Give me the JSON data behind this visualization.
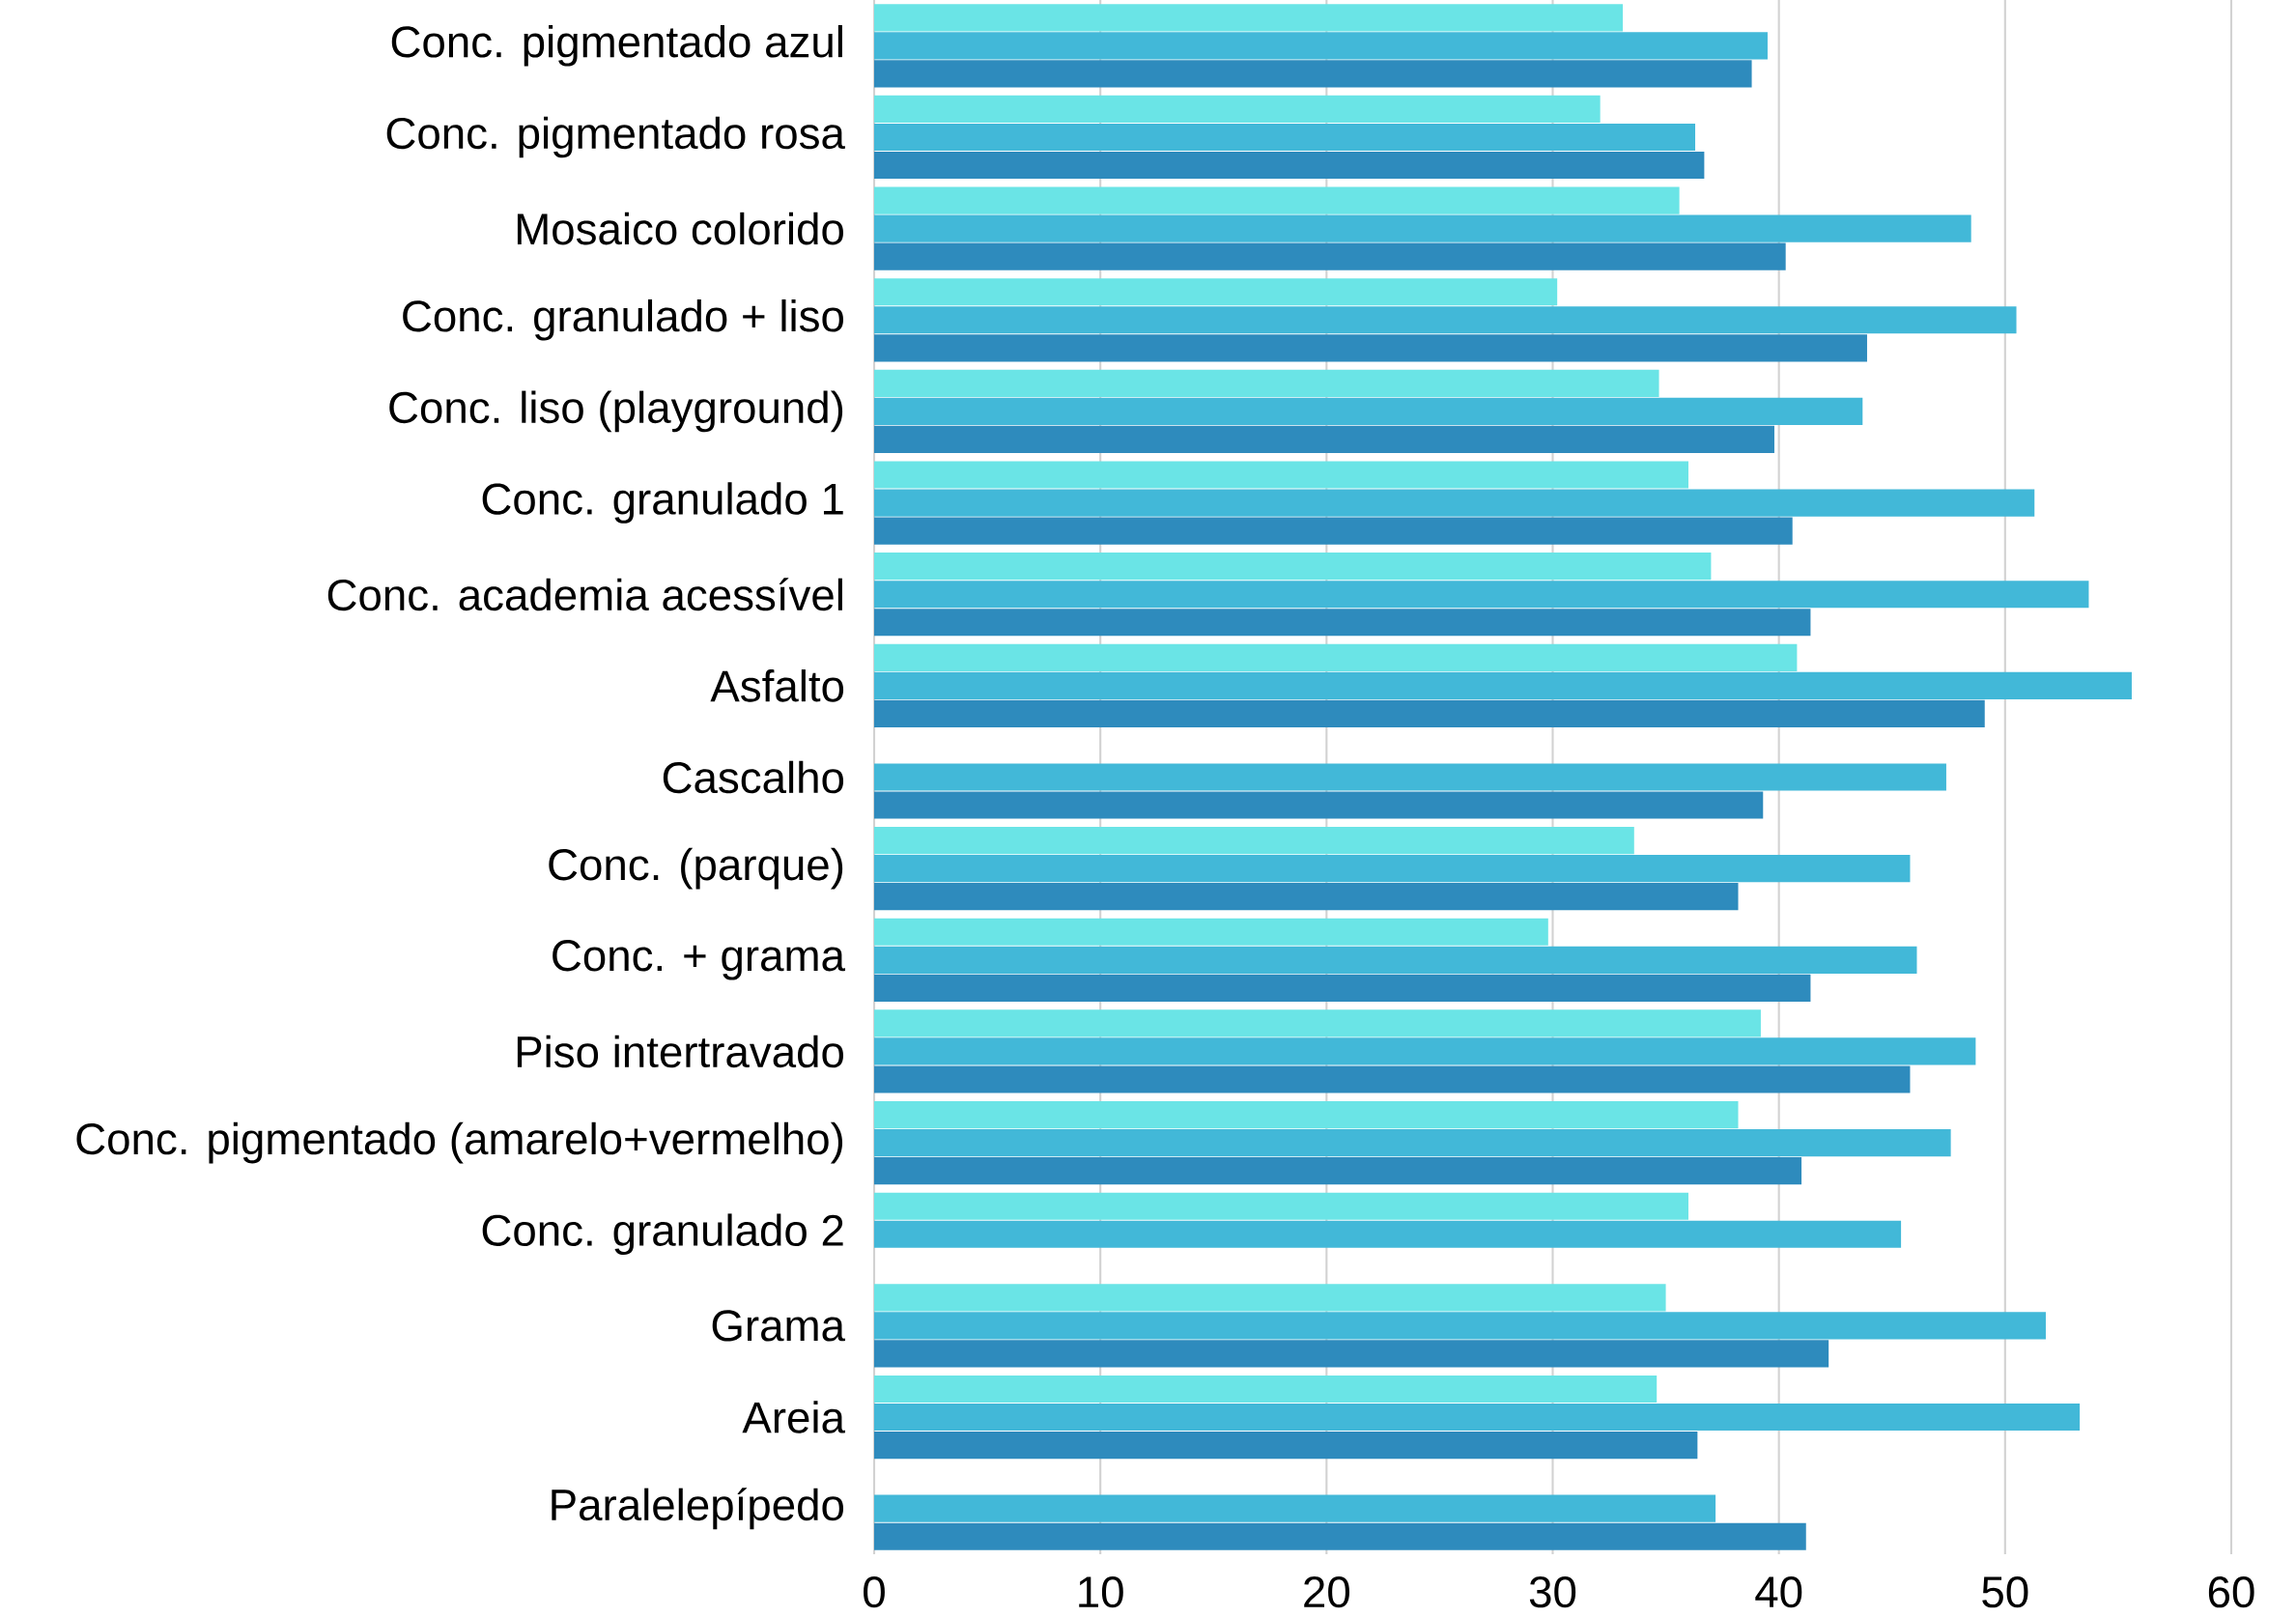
{
  "chart_data": {
    "type": "bar",
    "orientation": "horizontal",
    "categories": [
      "Conc. pigmentado azul",
      "Conc. pigmentado rosa",
      "Mosaico colorido",
      "Conc. granulado + liso",
      "Conc. liso (playground)",
      "Conc. granulado 1",
      "Conc. academia acessível",
      "Asfalto",
      "Cascalho",
      "Conc. (parque)",
      "Conc. + grama",
      "Piso intertravado",
      "Conc. pigmentado (amarelo+vermelho)",
      "Conc. granulado 2",
      "Grama",
      "Areia",
      "Paralelepípedo"
    ],
    "series": [
      {
        "color": "#6ae4e6",
        "values": [
          33.1,
          32.1,
          35.6,
          30.2,
          34.7,
          36.0,
          37.0,
          40.8,
          null,
          33.6,
          29.8,
          39.2,
          38.2,
          36.0,
          35.0,
          34.6,
          null
        ]
      },
      {
        "color": "#42b8d8",
        "values": [
          39.5,
          36.3,
          48.5,
          50.5,
          43.7,
          51.3,
          53.7,
          55.6,
          47.4,
          45.8,
          46.1,
          48.7,
          47.6,
          45.4,
          51.8,
          53.3,
          37.2
        ]
      },
      {
        "color": "#2e8bbd",
        "values": [
          38.8,
          36.7,
          40.3,
          43.9,
          39.8,
          40.6,
          41.4,
          49.1,
          39.3,
          38.2,
          41.4,
          45.8,
          41.0,
          null,
          42.2,
          36.4,
          41.2
        ]
      }
    ],
    "xlim": [
      0,
      60
    ],
    "xticks": [
      0,
      10,
      20,
      30,
      40,
      50,
      60
    ],
    "grid": "x"
  }
}
